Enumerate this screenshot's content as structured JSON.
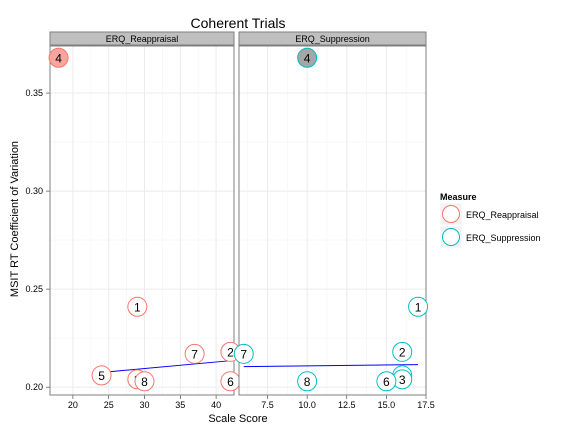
{
  "chart_data": {
    "type": "scatter",
    "title": "Coherent Trials",
    "xlabel": "Scale Score",
    "ylabel": "MSIT RT Coefficient of Variation",
    "y_ticks": [
      "0.20",
      "0.25",
      "0.30",
      "0.35"
    ],
    "ylim": [
      0.196,
      0.374
    ],
    "grid": true,
    "legend": {
      "title": "Measure",
      "position": "right",
      "entries": [
        {
          "label": "ERQ_Reappraisal",
          "color": "#f8766d"
        },
        {
          "label": "ERQ_Suppression",
          "color": "#00bfc4"
        }
      ]
    },
    "panels": [
      {
        "strip": "ERQ_Reappraisal",
        "color": "#f8766d",
        "xlim": [
          16.8,
          42.5
        ],
        "x_ticks": [
          "20",
          "25",
          "30",
          "35",
          "40"
        ],
        "points": [
          {
            "label": "4",
            "x": 18,
            "y": 0.368,
            "filled": true
          },
          {
            "label": "1",
            "x": 29,
            "y": 0.241
          },
          {
            "label": "2",
            "x": 42,
            "y": 0.218
          },
          {
            "label": "7",
            "x": 37,
            "y": 0.217
          },
          {
            "label": "5",
            "x": 24,
            "y": 0.206
          },
          {
            "label": "3",
            "x": 29,
            "y": 0.204
          },
          {
            "label": "8",
            "x": 30,
            "y": 0.203
          },
          {
            "label": "6",
            "x": 42,
            "y": 0.203
          }
        ],
        "fit": {
          "x": [
            24,
            42
          ],
          "y": [
            0.2075,
            0.2135
          ],
          "color": "#0000ff"
        }
      },
      {
        "strip": "ERQ_Suppression",
        "color": "#00bfc4",
        "xlim": [
          5.7,
          17.5
        ],
        "x_ticks": [
          "7.5",
          "10.0",
          "12.5",
          "15.0",
          "17.5"
        ],
        "points": [
          {
            "label": "4",
            "x": 10,
            "y": 0.368,
            "filled": true
          },
          {
            "label": "1",
            "x": 17,
            "y": 0.241
          },
          {
            "label": "2",
            "x": 16,
            "y": 0.218
          },
          {
            "label": "7",
            "x": 6,
            "y": 0.217
          },
          {
            "label": "5",
            "x": 16,
            "y": 0.206
          },
          {
            "label": "3",
            "x": 16,
            "y": 0.204
          },
          {
            "label": "8",
            "x": 10,
            "y": 0.203
          },
          {
            "label": "6",
            "x": 15,
            "y": 0.203
          }
        ],
        "fit": {
          "x": [
            6,
            17
          ],
          "y": [
            0.2105,
            0.2115
          ],
          "color": "#0000ff"
        }
      }
    ]
  }
}
